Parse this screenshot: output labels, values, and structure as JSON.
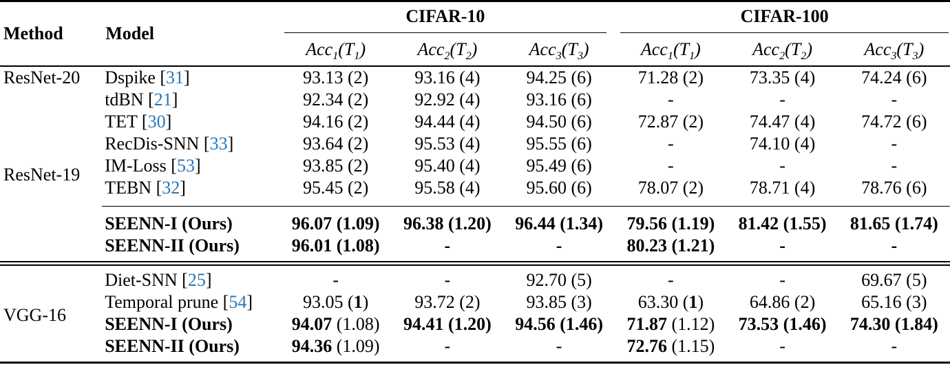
{
  "colors": {
    "citation": "#2777b8",
    "text": "#000000",
    "background": "#ffffff"
  },
  "table": {
    "header": {
      "method_label": "Method",
      "model_label": "Model",
      "groups": [
        {
          "label": "CIFAR-10",
          "subcolumns": [
            "Acc_1(T_1)",
            "Acc_2(T_2)",
            "Acc_3(T_3)"
          ]
        },
        {
          "label": "CIFAR-100",
          "subcolumns": [
            "Acc_1(T_1)",
            "Acc_2(T_2)",
            "Acc_3(T_3)"
          ]
        }
      ]
    },
    "sections": [
      {
        "method_groups": [
          {
            "label": "ResNet-20",
            "rows": 1
          },
          {
            "label": "ResNet-19",
            "rows": 7
          }
        ],
        "rows": [
          {
            "model": "Dspike",
            "cite": "31",
            "bold_model": false,
            "rule_above": false,
            "values": [
              "93.13 (2)",
              "93.16 (4)",
              "94.25 (6)",
              "71.28 (2)",
              "73.35 (4)",
              "74.24 (6)"
            ]
          },
          {
            "model": "tdBN",
            "cite": "21",
            "bold_model": false,
            "rule_above": false,
            "values": [
              "92.34 (2)",
              "92.92 (4)",
              "93.16 (6)",
              "-",
              "-",
              "-"
            ]
          },
          {
            "model": "TET",
            "cite": "30",
            "bold_model": false,
            "rule_above": false,
            "values": [
              "94.16 (2)",
              "94.44 (4)",
              "94.50 (6)",
              "72.87 (2)",
              "74.47 (4)",
              "74.72 (6)"
            ]
          },
          {
            "model": "RecDis-SNN",
            "cite": "33",
            "bold_model": false,
            "rule_above": false,
            "values": [
              "93.64 (2)",
              "95.53 (4)",
              "95.55 (6)",
              "-",
              "74.10 (4)",
              "-"
            ]
          },
          {
            "model": "IM-Loss",
            "cite": "53",
            "bold_model": false,
            "rule_above": false,
            "values": [
              "93.85 (2)",
              "95.40 (4)",
              "95.49 (6)",
              "-",
              "-",
              "-"
            ]
          },
          {
            "model": "TEBN",
            "cite": "32",
            "bold_model": false,
            "rule_above": false,
            "values": [
              "95.45 (2)",
              "95.58 (4)",
              "95.60 (6)",
              "78.07 (2)",
              "78.71 (4)",
              "78.76 (6)"
            ]
          },
          {
            "model": "SEENN-I (Ours)",
            "cite": "",
            "bold_model": true,
            "rule_above": true,
            "values": [
              "**96.07 (1.09)**",
              "**96.38 (1.20)**",
              "**96.44 (1.34)**",
              "**79.56 (1.19)**",
              "**81.42 (1.55)**",
              "**81.65 (1.74)**"
            ]
          },
          {
            "model": "SEENN-II (Ours)",
            "cite": "",
            "bold_model": true,
            "rule_above": false,
            "values": [
              "**96.01 (1.08)**",
              "**-**",
              "**-**",
              "**80.23 (1.21)**",
              "**-**",
              "**-**"
            ]
          }
        ]
      },
      {
        "method_groups": [
          {
            "label": "VGG-16",
            "rows": 4
          }
        ],
        "rows": [
          {
            "model": "Diet-SNN",
            "cite": "25",
            "bold_model": false,
            "rule_above": false,
            "values": [
              "-",
              "-",
              "92.70 (5)",
              "-",
              "-",
              "69.67 (5)"
            ]
          },
          {
            "model": "Temporal prune",
            "cite": "54",
            "bold_model": false,
            "rule_above": false,
            "values": [
              "93.05 (**1**)",
              "93.72 (2)",
              "93.85 (3)",
              "63.30 (**1**)",
              "64.86 (2)",
              "65.16 (3)"
            ]
          },
          {
            "model": "SEENN-I (Ours)",
            "cite": "",
            "bold_model": true,
            "rule_above": false,
            "values": [
              "**94.07** (1.08)",
              "**94.41 (1.20)**",
              "**94.56 (1.46)**",
              "**71.87** (1.12)",
              "**73.53 (1.46)**",
              "**74.30 (1.84)**"
            ]
          },
          {
            "model": "SEENN-II (Ours)",
            "cite": "",
            "bold_model": true,
            "rule_above": false,
            "values": [
              "**94.36** (1.09)",
              "-",
              "-",
              "**72.76** (1.15)",
              "-",
              "-"
            ]
          }
        ]
      }
    ]
  }
}
